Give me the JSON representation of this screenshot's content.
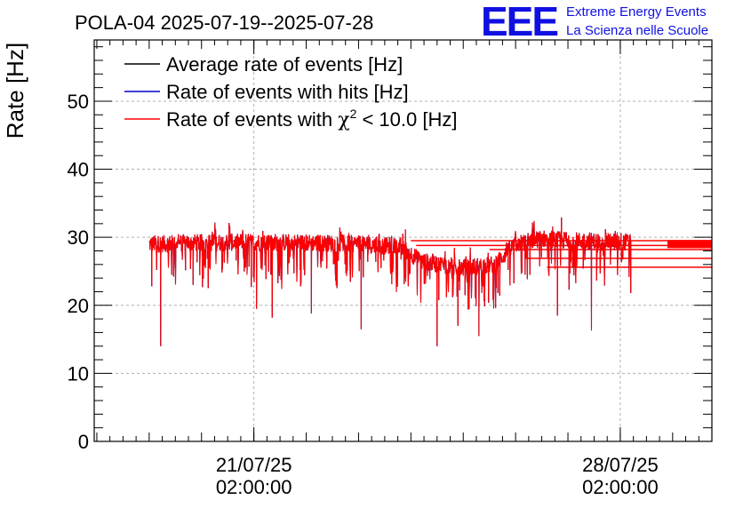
{
  "chart_data": {
    "type": "line",
    "title": "POLA-04 2025-07-19--2025-07-28",
    "ylabel": "Rate [Hz]",
    "xlabel": "",
    "ylim": [
      0,
      59
    ],
    "yticks": [
      0,
      10,
      20,
      30,
      40,
      50
    ],
    "xticks": [
      {
        "date": "21/07/25",
        "time": "02:00:00",
        "day_offset": 2.0
      },
      {
        "date": "28/07/25",
        "time": "02:00:00",
        "day_offset": 9.0
      }
    ],
    "xlim_days": [
      -1.05,
      10.75
    ],
    "grid": true,
    "legend_position": "top-left",
    "series": [
      {
        "name": "Average rate of events [Hz]",
        "color": "#000000"
      },
      {
        "name": "Rate of events with hits [Hz]",
        "color": "#0000cc"
      },
      {
        "name": "Rate of events with χ² < 10.0 [Hz]",
        "color": "#ff0000",
        "name_prefix": "Rate of events with ",
        "name_chi": "χ",
        "name_sup": "2",
        "name_suffix": " < 10.0 [Hz]"
      }
    ],
    "profile": {
      "x_days": [
        0.0,
        1.0,
        2.0,
        3.0,
        4.0,
        4.8,
        5.2,
        6.0,
        6.6,
        7.0,
        7.5,
        8.0,
        9.0,
        10.0,
        10.75
      ],
      "baseline": [
        29.0,
        29.2,
        29.3,
        29.2,
        29.0,
        28.6,
        26.5,
        25.5,
        26.0,
        29.0,
        29.8,
        29.5,
        29.3,
        29.2,
        29.0
      ]
    },
    "outliers": [
      {
        "x_days": 0.22,
        "y": 14.0
      },
      {
        "x_days": 0.05,
        "y": 22.8
      },
      {
        "x_days": 2.05,
        "y": 19.5
      },
      {
        "x_days": 2.35,
        "y": 18.2
      },
      {
        "x_days": 3.1,
        "y": 18.8
      },
      {
        "x_days": 4.05,
        "y": 16.5
      },
      {
        "x_days": 5.5,
        "y": 14.0
      },
      {
        "x_days": 5.9,
        "y": 17.0
      },
      {
        "x_days": 6.3,
        "y": 15.5
      },
      {
        "x_days": 7.8,
        "y": 18.5
      },
      {
        "x_days": 8.45,
        "y": 16.3
      },
      {
        "x_days": 9.2,
        "y": 21.8
      }
    ],
    "tail_lines": [
      {
        "from_days": 5.0,
        "y": 29.5
      },
      {
        "from_days": 5.1,
        "y": 28.8
      },
      {
        "from_days": 6.5,
        "y": 28.2
      },
      {
        "from_days": 7.2,
        "y": 26.9
      },
      {
        "from_days": 7.6,
        "y": 25.6
      }
    ]
  },
  "logo": {
    "letters": "EEE",
    "line1": "Extreme Energy Events",
    "line2": "La Scienza nelle Scuole",
    "color": "#1010e0"
  }
}
